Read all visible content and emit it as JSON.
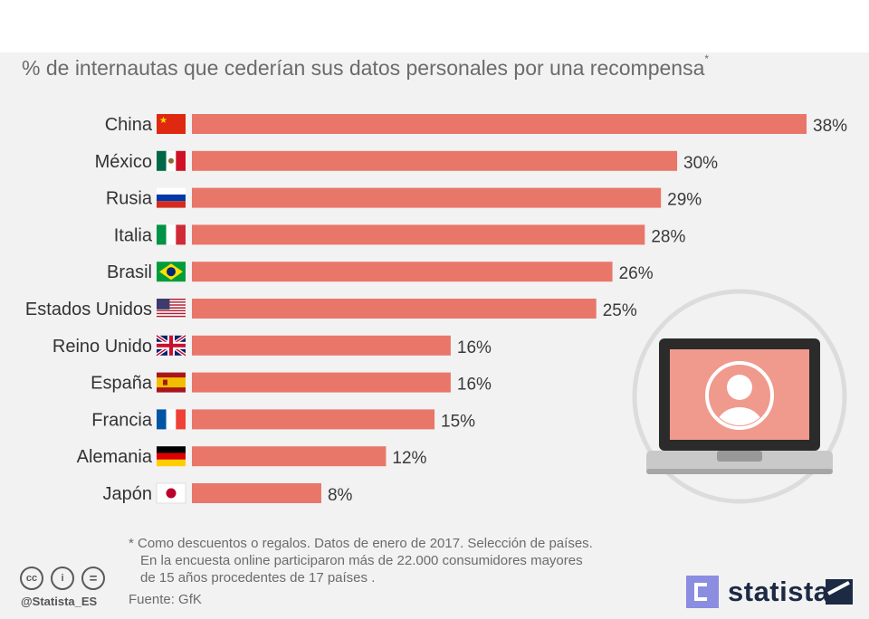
{
  "subtitle": "% de internautas que cederían sus datos personales por una recompensa",
  "subtitle_mark": "*",
  "colors": {
    "bar": "#e8776a",
    "background": "#f2f2f2"
  },
  "chart_data": {
    "type": "bar",
    "orientation": "horizontal",
    "title": "% de internautas que cederían sus datos personales por una recompensa*",
    "xlabel": "",
    "ylabel": "",
    "xlim": [
      0,
      38
    ],
    "categories": [
      "China",
      "México",
      "Rusia",
      "Italia",
      "Brasil",
      "Estados Unidos",
      "Reino Unido",
      "España",
      "Francia",
      "Alemania",
      "Japón"
    ],
    "values": [
      38,
      30,
      29,
      28,
      26,
      25,
      16,
      16,
      15,
      12,
      8
    ],
    "value_labels": [
      "38%",
      "30%",
      "29%",
      "28%",
      "26%",
      "25%",
      "16%",
      "16%",
      "15%",
      "12%",
      "8%"
    ],
    "flag_icons": [
      "china-flag-icon",
      "mexico-flag-icon",
      "russia-flag-icon",
      "italy-flag-icon",
      "brazil-flag-icon",
      "usa-flag-icon",
      "uk-flag-icon",
      "spain-flag-icon",
      "france-flag-icon",
      "germany-flag-icon",
      "japan-flag-icon"
    ]
  },
  "footnote": {
    "line1": "* Como descuentos o regalos. Datos de enero de 2017. Selección de países.",
    "line2": "En la encuesta online participaron más de 22.000 consumidores mayores",
    "line3": "de 15 años procedentes de 17 países ."
  },
  "source": "Fuente: GfK",
  "license_icons": [
    "cc-icon",
    "by-icon",
    "nd-icon"
  ],
  "license_glyphs": {
    "cc": "cc",
    "by": "i",
    "nd": "="
  },
  "handle": "@Statista_ES",
  "brand": "statista",
  "illustration_icons": [
    "laptop-icon",
    "user-avatar-icon"
  ]
}
